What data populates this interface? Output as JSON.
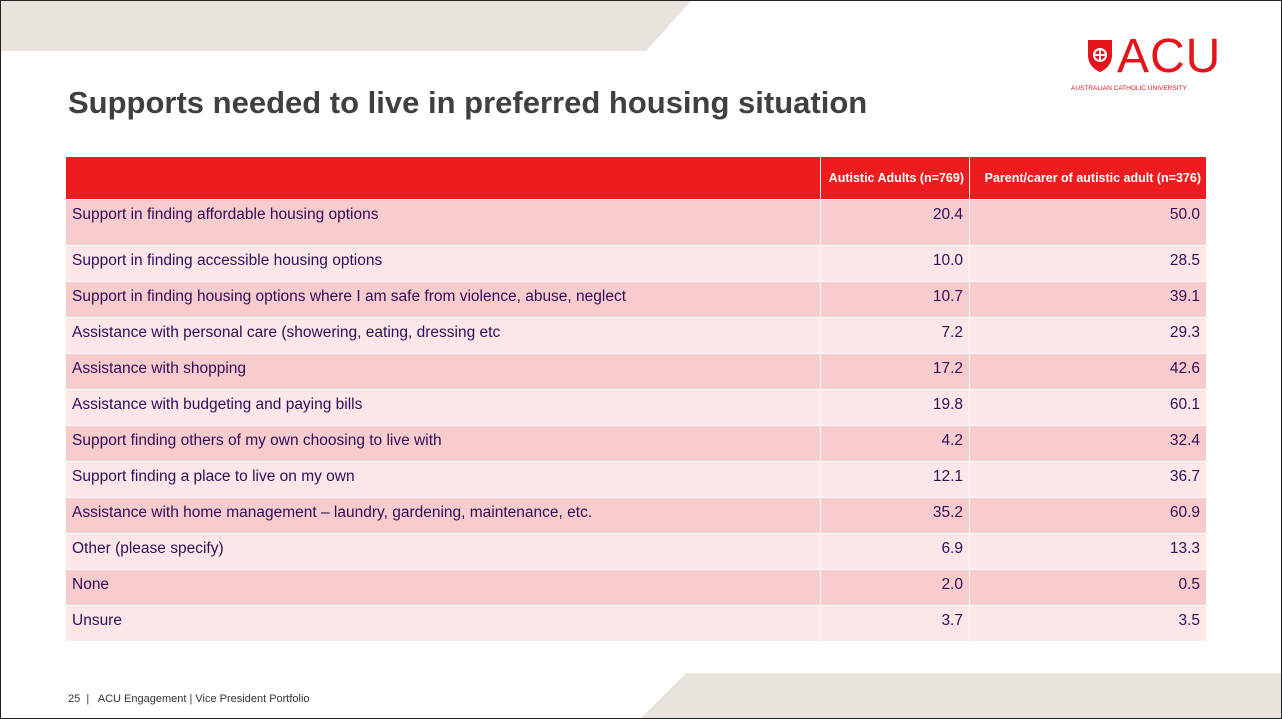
{
  "header": {
    "title": "Supports needed to live in preferred housing situation",
    "logo": "ACU",
    "logo_subtitle": "AUSTRALIAN CATHOLIC UNIVERSITY"
  },
  "table": {
    "columns": [
      "",
      "Autistic Adults (n=769)",
      "Parent/carer of autistic adult (n=376)"
    ],
    "rows": [
      [
        "Support in finding affordable housing options",
        "20.4",
        "50.0"
      ],
      [
        "Support in finding accessible housing options",
        "10.0",
        "28.5"
      ],
      [
        "Support in finding housing options where I am safe from violence, abuse, neglect",
        "10.7",
        "39.1"
      ],
      [
        "Assistance with personal care (showering, eating, dressing etc",
        "7.2",
        "29.3"
      ],
      [
        "Assistance with shopping",
        "17.2",
        "42.6"
      ],
      [
        "Assistance with budgeting and paying bills",
        "19.8",
        "60.1"
      ],
      [
        "Support finding others of my own choosing to live with",
        "4.2",
        "32.4"
      ],
      [
        "Support finding a place to live on my own",
        "12.1",
        "36.7"
      ],
      [
        "Assistance with home management – laundry, gardening, maintenance, etc.",
        "35.2",
        "60.9"
      ],
      [
        "Other (please specify)",
        "6.9",
        "13.3"
      ],
      [
        "None",
        "2.0",
        "0.5"
      ],
      [
        "Unsure",
        "3.7",
        "3.5"
      ]
    ]
  },
  "footer": {
    "page": "25",
    "text": "ACU Engagement | Vice President Portfolio"
  }
}
